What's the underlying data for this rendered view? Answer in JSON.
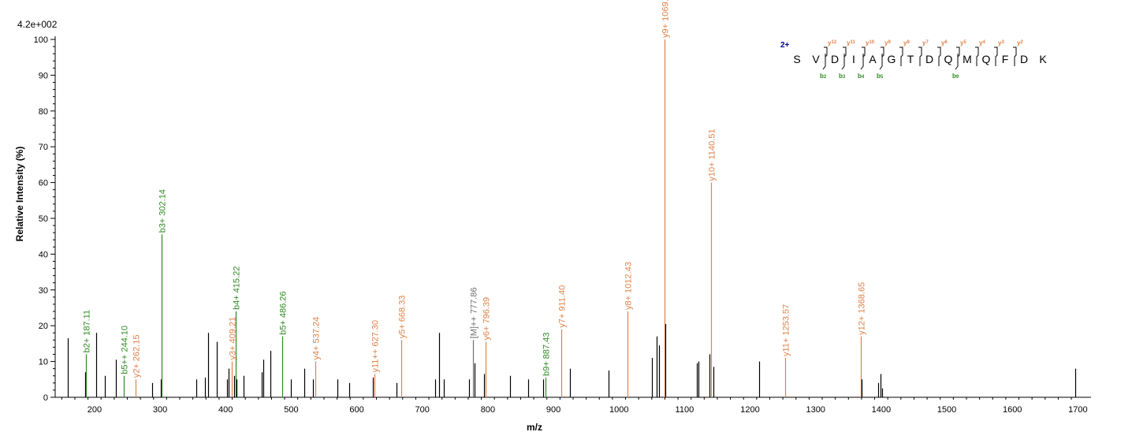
{
  "colors": {
    "b": "#2e8b22",
    "y": "#e0824a",
    "M": "#707070",
    "unlabeled": "#000000",
    "charge": "#00008b"
  },
  "chart_data": {
    "type": "bar",
    "scale_label": "4.2e+002",
    "xlabel": "m/z",
    "ylabel": "Relative   Intensity (%)",
    "xlim": [
      140,
      1720
    ],
    "ylim": [
      0,
      100
    ],
    "xticks": [
      200,
      300,
      400,
      500,
      600,
      700,
      800,
      900,
      1000,
      1100,
      1200,
      1300,
      1400,
      1500,
      1600,
      1700
    ],
    "yticks": [
      0,
      10,
      20,
      30,
      40,
      50,
      60,
      70,
      80,
      90,
      100
    ],
    "peaks": [
      {
        "x": 159,
        "y": 16.5,
        "c": "unlabeled"
      },
      {
        "x": 186,
        "y": 7,
        "c": "unlabeled"
      },
      {
        "x": 187.11,
        "y": 12,
        "c": "b",
        "label": "b2+ 187.11"
      },
      {
        "x": 202,
        "y": 18,
        "c": "unlabeled"
      },
      {
        "x": 216,
        "y": 6,
        "c": "unlabeled"
      },
      {
        "x": 232,
        "y": 10.5,
        "c": "unlabeled"
      },
      {
        "x": 244.1,
        "y": 6,
        "c": "b",
        "label": "b5++ 244.10"
      },
      {
        "x": 262.15,
        "y": 5,
        "c": "y",
        "label": "y2+ 262.15"
      },
      {
        "x": 288,
        "y": 4,
        "c": "unlabeled"
      },
      {
        "x": 301,
        "y": 5,
        "c": "unlabeled"
      },
      {
        "x": 302.14,
        "y": 45.5,
        "c": "b",
        "label": "b3+ 302.14"
      },
      {
        "x": 355,
        "y": 5,
        "c": "unlabeled"
      },
      {
        "x": 368,
        "y": 5.5,
        "c": "unlabeled"
      },
      {
        "x": 373,
        "y": 18,
        "c": "unlabeled"
      },
      {
        "x": 387,
        "y": 15.5,
        "c": "unlabeled"
      },
      {
        "x": 402,
        "y": 5,
        "c": "unlabeled"
      },
      {
        "x": 404,
        "y": 8,
        "c": "unlabeled"
      },
      {
        "x": 409.21,
        "y": 10,
        "c": "y",
        "label": "y3+ 409.21"
      },
      {
        "x": 413,
        "y": 6,
        "c": "unlabeled"
      },
      {
        "x": 415.22,
        "y": 24,
        "c": "b",
        "label": "b4+ 415.22"
      },
      {
        "x": 417,
        "y": 5,
        "c": "unlabeled"
      },
      {
        "x": 427,
        "y": 6,
        "c": "unlabeled"
      },
      {
        "x": 455,
        "y": 7,
        "c": "unlabeled"
      },
      {
        "x": 458,
        "y": 10.5,
        "c": "unlabeled"
      },
      {
        "x": 468,
        "y": 13,
        "c": "unlabeled"
      },
      {
        "x": 486.26,
        "y": 17,
        "c": "b",
        "label": "b5+ 486.26"
      },
      {
        "x": 500,
        "y": 5,
        "c": "unlabeled"
      },
      {
        "x": 520,
        "y": 8,
        "c": "unlabeled"
      },
      {
        "x": 533,
        "y": 5,
        "c": "unlabeled"
      },
      {
        "x": 537.24,
        "y": 10,
        "c": "y",
        "label": "y4+ 537.24"
      },
      {
        "x": 570,
        "y": 5,
        "c": "unlabeled"
      },
      {
        "x": 589,
        "y": 4,
        "c": "unlabeled"
      },
      {
        "x": 624,
        "y": 5.5,
        "c": "unlabeled"
      },
      {
        "x": 627.3,
        "y": 6.5,
        "c": "y",
        "label": "y11++ 627.30"
      },
      {
        "x": 661,
        "y": 4,
        "c": "unlabeled"
      },
      {
        "x": 668.33,
        "y": 16,
        "c": "y",
        "label": "y5+ 668.33"
      },
      {
        "x": 720,
        "y": 5,
        "c": "unlabeled"
      },
      {
        "x": 726,
        "y": 18,
        "c": "unlabeled"
      },
      {
        "x": 733,
        "y": 5,
        "c": "unlabeled"
      },
      {
        "x": 771,
        "y": 5,
        "c": "unlabeled"
      },
      {
        "x": 777.86,
        "y": 16,
        "c": "M",
        "label": "[M]++ 777.86"
      },
      {
        "x": 780,
        "y": 9.5,
        "c": "unlabeled"
      },
      {
        "x": 794,
        "y": 6.5,
        "c": "unlabeled"
      },
      {
        "x": 796.39,
        "y": 15.5,
        "c": "y",
        "label": "y6+ 796.39"
      },
      {
        "x": 834,
        "y": 6,
        "c": "unlabeled"
      },
      {
        "x": 862,
        "y": 5,
        "c": "unlabeled"
      },
      {
        "x": 884,
        "y": 5,
        "c": "unlabeled"
      },
      {
        "x": 887.43,
        "y": 5.5,
        "c": "b",
        "label": "b9+ 887.43"
      },
      {
        "x": 911.4,
        "y": 19,
        "c": "y",
        "label": "y7+ 911.40"
      },
      {
        "x": 925,
        "y": 8,
        "c": "unlabeled"
      },
      {
        "x": 984,
        "y": 7.5,
        "c": "unlabeled"
      },
      {
        "x": 1012.43,
        "y": 24,
        "c": "y",
        "label": "y8+ 1012.43"
      },
      {
        "x": 1050,
        "y": 11,
        "c": "unlabeled"
      },
      {
        "x": 1058,
        "y": 17,
        "c": "unlabeled"
      },
      {
        "x": 1061,
        "y": 14.5,
        "c": "unlabeled"
      },
      {
        "x": 1069.47,
        "y": 100,
        "c": "y",
        "label": "y9+ 1069.47"
      },
      {
        "x": 1071,
        "y": 20.5,
        "c": "unlabeled"
      },
      {
        "x": 1119,
        "y": 9.5,
        "c": "unlabeled"
      },
      {
        "x": 1121,
        "y": 10,
        "c": "unlabeled"
      },
      {
        "x": 1138,
        "y": 12,
        "c": "unlabeled"
      },
      {
        "x": 1140.51,
        "y": 60,
        "c": "y",
        "label": "y10+ 1140.51"
      },
      {
        "x": 1144,
        "y": 8.5,
        "c": "unlabeled"
      },
      {
        "x": 1214,
        "y": 10,
        "c": "unlabeled"
      },
      {
        "x": 1253.57,
        "y": 11,
        "c": "y",
        "label": "y11+ 1253.57"
      },
      {
        "x": 1368.65,
        "y": 17,
        "c": "y",
        "label": "y12+ 1368.65"
      },
      {
        "x": 1370,
        "y": 5,
        "c": "unlabeled"
      },
      {
        "x": 1395,
        "y": 4,
        "c": "unlabeled"
      },
      {
        "x": 1399,
        "y": 6.5,
        "c": "unlabeled"
      },
      {
        "x": 1401,
        "y": 2.5,
        "c": "unlabeled"
      },
      {
        "x": 1696,
        "y": 8,
        "c": "unlabeled"
      }
    ],
    "sequence": {
      "charge": "2+",
      "residues": [
        "S",
        "V",
        "D",
        "I",
        "A",
        "G",
        "T",
        "D",
        "Q",
        "M",
        "Q",
        "F",
        "D",
        "K"
      ],
      "b_ions": [
        {
          "after": 2,
          "label": "b",
          "num": "2"
        },
        {
          "after": 3,
          "label": "b",
          "num": "3"
        },
        {
          "after": 4,
          "label": "b",
          "num": "4"
        },
        {
          "after": 5,
          "label": "b",
          "num": "5"
        },
        {
          "after": 9,
          "label": "b",
          "num": "9"
        }
      ],
      "y_ions": [
        {
          "after": 2,
          "label": "y",
          "num": "12"
        },
        {
          "after": 3,
          "label": "y",
          "num": "11"
        },
        {
          "after": 4,
          "label": "y",
          "num": "10"
        },
        {
          "after": 5,
          "label": "y",
          "num": "9"
        },
        {
          "after": 6,
          "label": "y",
          "num": "8"
        },
        {
          "after": 7,
          "label": "y",
          "num": "7"
        },
        {
          "after": 8,
          "label": "y",
          "num": "6"
        },
        {
          "after": 9,
          "label": "y",
          "num": "5"
        },
        {
          "after": 10,
          "label": "y",
          "num": "4"
        },
        {
          "after": 11,
          "label": "y",
          "num": "3"
        },
        {
          "after": 12,
          "label": "y",
          "num": "2"
        }
      ]
    }
  }
}
